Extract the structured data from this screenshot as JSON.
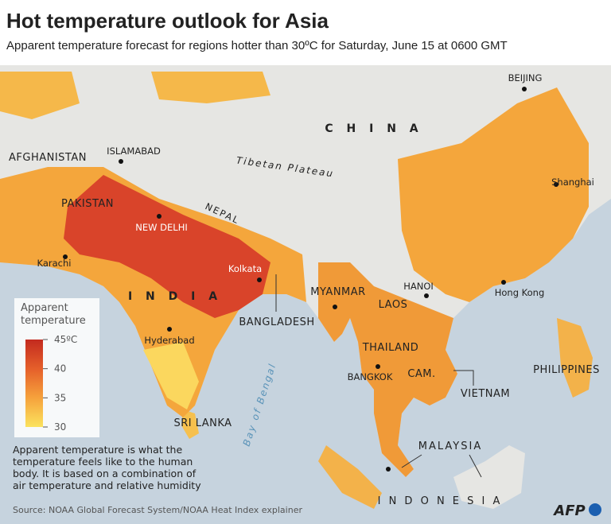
{
  "header": {
    "title": "Hot temperature outlook for Asia",
    "subtitle": "Apparent temperature forecast for regions hotter than 30ºC for Saturday, June 15 at 0600 GMT"
  },
  "places": {
    "china": "C H I N A",
    "tibet": "Tibetan Plateau",
    "afghanistan": "AFGHANISTAN",
    "islamabad": "ISLAMABAD",
    "pakistan": "PAKISTAN",
    "new_delhi": "NEW DELHI",
    "nepal": "NEPAL",
    "karachi": "Karachi",
    "india": "I N D I A",
    "kolkata": "Kolkata",
    "bangladesh": "BANGLADESH",
    "myanmar": "MYANMAR",
    "hanoi": "HANOI",
    "laos": "LAOS",
    "hong_kong": "Hong Kong",
    "beijing": "BEIJING",
    "shanghai": "Shanghai",
    "hyderabad": "Hyderabad",
    "thailand": "THAILAND",
    "bangkok": "BANGKOK",
    "cambodia": "CAM.",
    "vietnam": "VIETNAM",
    "philippines": "PHILIPPINES",
    "bay_of_bengal": "Bay of Bengal",
    "sri_lanka": "SRI LANKA",
    "malaysia": "MALAYSIA",
    "indonesia": "I N D O N E S I A"
  },
  "legend": {
    "title": [
      "Apparent",
      "temperature"
    ],
    "range": [
      30,
      45
    ],
    "ticks": [
      {
        "value": 45,
        "label": "45ºC"
      },
      40,
      35,
      30
    ],
    "colors": [
      "#fbe35e",
      "#f6a23c",
      "#e55f2a",
      "#c32a1f"
    ]
  },
  "note": [
    "Apparent temperature is what the",
    "temperature feels like to the human",
    "body. It is based on a combination of",
    "air temperature and relative humidity"
  ],
  "source": "Source: NOAA Global Forecast System/NOAA Heat Index explainer",
  "logo": "AFP"
}
